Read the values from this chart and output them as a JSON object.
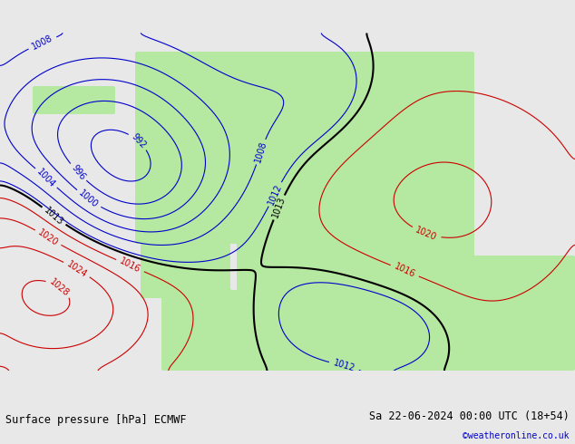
{
  "title_left": "Surface pressure [hPa] ECMWF",
  "title_right": "Sa 22-06-2024 00:00 UTC (18+54)",
  "credit": "©weatheronline.co.uk",
  "bg_color": "#e8e8e8",
  "land_color": "#b5e8a0",
  "ocean_color": "#e8e8e8",
  "isobar_blue_color": "#0000cc",
  "isobar_red_color": "#cc0000",
  "isobar_black_color": "#000000",
  "font_size_labels": 7,
  "font_size_bottom": 8.5,
  "credit_color": "#0000cc",
  "figsize": [
    6.34,
    4.9
  ],
  "dpi": 100
}
